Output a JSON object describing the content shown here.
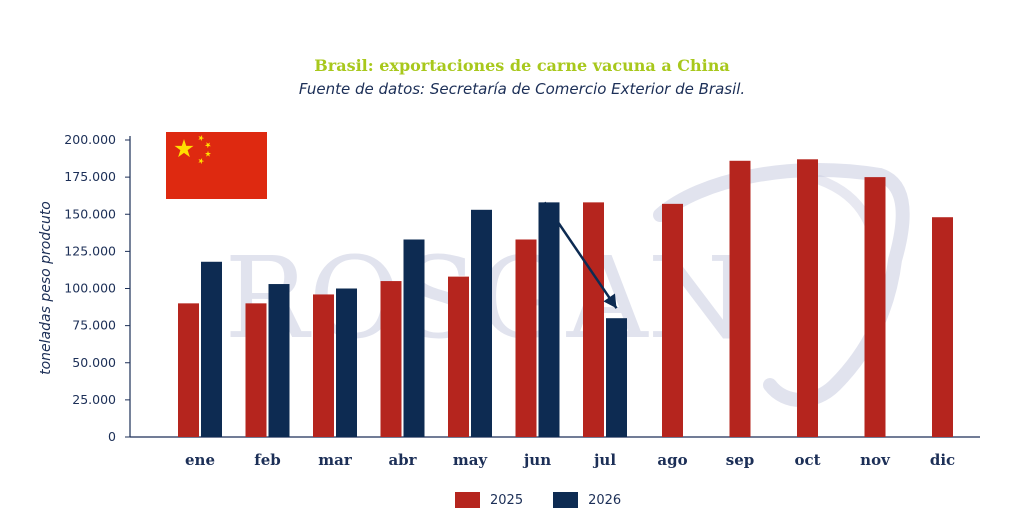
{
  "title": "Brasil: exportaciones de carne vacuna a China",
  "subtitle": "Fuente de datos: Secretaría de Comercio Exterior de Brasil.",
  "watermark": "ROSGAN",
  "colors": {
    "series_2025": "#b5251e",
    "series_2026": "#0d2b52",
    "axis": "#1c2f57",
    "title": "#a8c81c",
    "watermark": "#c9cce0",
    "flag_red": "#de2910",
    "flag_star": "#ffde00"
  },
  "icons": [
    "china-flag-icon"
  ],
  "chart_data": {
    "type": "bar",
    "title": "Brasil: exportaciones de carne vacuna a China",
    "subtitle": "Fuente de datos: Secretaría de Comercio Exterior de Brasil.",
    "xlabel": "",
    "ylabel": "toneladas peso prodcuto",
    "ylim": [
      0,
      200000
    ],
    "yticks": [
      0,
      25000,
      50000,
      75000,
      100000,
      125000,
      150000,
      175000,
      200000
    ],
    "ytick_labels": [
      "0",
      "25.000",
      "50.000",
      "75.000",
      "100.000",
      "125.000",
      "150.000",
      "175.000",
      "200.000"
    ],
    "categories": [
      "ene",
      "feb",
      "mar",
      "abr",
      "may",
      "jun",
      "jul",
      "ago",
      "sep",
      "oct",
      "nov",
      "dic"
    ],
    "series": [
      {
        "name": "2025",
        "color": "#b5251e",
        "values": [
          90000,
          90000,
          96000,
          105000,
          108000,
          133000,
          158000,
          157000,
          186000,
          187000,
          175000,
          148000
        ]
      },
      {
        "name": "2026",
        "color": "#0d2b52",
        "values": [
          118000,
          103000,
          100000,
          133000,
          153000,
          158000,
          80000,
          null,
          null,
          null,
          null,
          null
        ]
      }
    ],
    "annotation": {
      "type": "arrow",
      "from_category": "jun",
      "to_category": "jul",
      "color": "#0d2b52"
    },
    "grid": false,
    "legend_position": "bottom"
  }
}
